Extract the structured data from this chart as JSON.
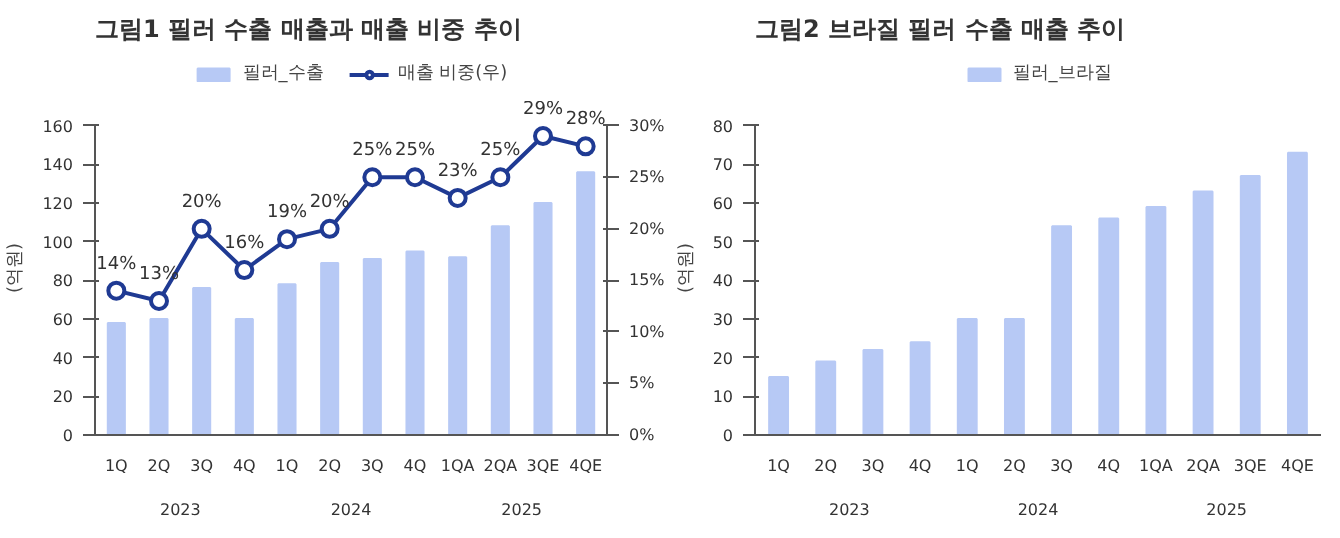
{
  "chart_data": [
    {
      "type": "bar",
      "title": "그림1 필러 수출 매출과 매출 비중 추이",
      "ylabel": "(억원)",
      "categories": [
        "1Q",
        "2Q",
        "3Q",
        "4Q",
        "1Q",
        "2Q",
        "3Q",
        "4Q",
        "1QA",
        "2QA",
        "3QE",
        "4QE"
      ],
      "annotations": [
        "2023",
        "2024",
        "2025"
      ],
      "series": [
        {
          "name": "필러_수출",
          "type": "bar",
          "color": "#b7c9f5",
          "values": [
            58,
            60,
            76,
            60,
            78,
            89,
            91,
            95,
            92,
            108,
            120,
            136
          ]
        },
        {
          "name": "매출 비중(우)",
          "type": "line",
          "axis": "y2",
          "color": "#1f3a93",
          "marker": "circle",
          "values": [
            14,
            13,
            20,
            16,
            19,
            20,
            25,
            25,
            23,
            25,
            29,
            28
          ],
          "value_labels": [
            "14%",
            "13%",
            "20%",
            "16%",
            "19%",
            "20%",
            "25%",
            "25%",
            "23%",
            "25%",
            "29%",
            "28%"
          ]
        }
      ],
      "ylim": [
        0,
        160
      ],
      "yticks": [
        0,
        20,
        40,
        60,
        80,
        100,
        120,
        140,
        160
      ],
      "y2lim": [
        0,
        30
      ],
      "y2ticks": [
        {
          "value": 0,
          "label": "0%"
        },
        {
          "value": 5,
          "label": "5%"
        },
        {
          "value": 10,
          "label": "10%"
        },
        {
          "value": 15,
          "label": "15%"
        },
        {
          "value": 20,
          "label": "20%"
        },
        {
          "value": 25,
          "label": "25%"
        },
        {
          "value": 30,
          "label": "30%"
        }
      ],
      "grid": false,
      "legend": "top"
    },
    {
      "type": "bar",
      "title": "그림2 브라질 필러 수출 매출 추이",
      "ylabel": "(억원)",
      "categories": [
        "1Q",
        "2Q",
        "3Q",
        "4Q",
        "1Q",
        "2Q",
        "3Q",
        "4Q",
        "1QA",
        "2QA",
        "3QE",
        "4QE"
      ],
      "annotations": [
        "2023",
        "2024",
        "2025"
      ],
      "series": [
        {
          "name": "필러_브라질",
          "type": "bar",
          "color": "#b7c9f5",
          "values": [
            15,
            19,
            22,
            24,
            30,
            30,
            54,
            56,
            59,
            63,
            67,
            73
          ]
        }
      ],
      "ylim": [
        0,
        80
      ],
      "yticks": [
        0,
        10,
        20,
        30,
        40,
        50,
        60,
        70,
        80
      ],
      "grid": false,
      "legend": "top"
    }
  ]
}
